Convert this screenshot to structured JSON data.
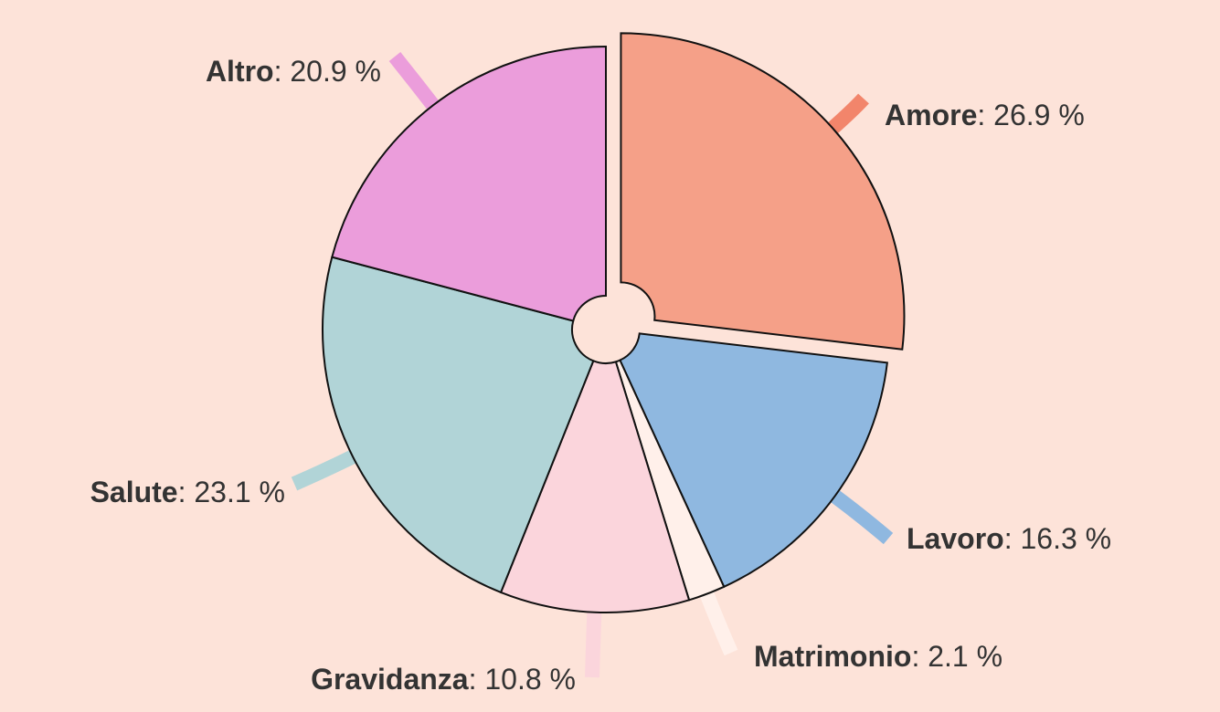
{
  "chart_data": {
    "type": "pie",
    "title": "",
    "background": "#fde3d9",
    "slices": [
      {
        "label": "Amore",
        "value": 26.9,
        "display": "26.9 %",
        "color": "#f5a088",
        "leader_color": "#f2856b",
        "exploded": true
      },
      {
        "label": "Lavoro",
        "value": 16.3,
        "display": "16.3 %",
        "color": "#8fb8e0",
        "leader_color": "#8fb8e0",
        "exploded": false
      },
      {
        "label": "Matrimonio",
        "value": 2.1,
        "display": "2.1 %",
        "color": "#fff0ea",
        "leader_color": "#fff0ea",
        "exploded": false
      },
      {
        "label": "Gravidanza",
        "value": 10.8,
        "display": "10.8 %",
        "color": "#fbd5dc",
        "leader_color": "#fbd5dc",
        "exploded": false
      },
      {
        "label": "Salute",
        "value": 23.1,
        "display": "23.1 %",
        "color": "#b1d4d7",
        "leader_color": "#b1d4d7",
        "exploded": false
      },
      {
        "label": "Altro",
        "value": 20.9,
        "display": "20.9 %",
        "color": "#eb9ddb",
        "leader_color": "#eb9ddb",
        "exploded": false
      }
    ],
    "label_format": "{label}: {value}",
    "legend": "none"
  }
}
